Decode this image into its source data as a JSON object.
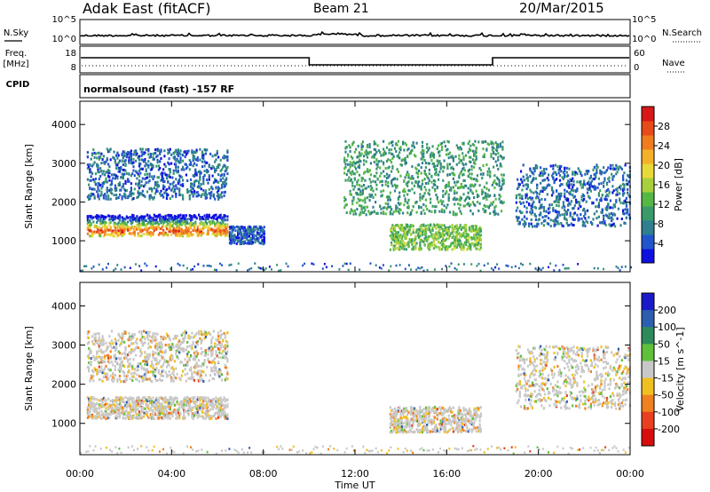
{
  "header": {
    "station": "Adak East (fitACF)",
    "beam": "Beam 21",
    "date": "20/Mar/2015"
  },
  "strips": {
    "nsky_label": "N.Sky",
    "nsearch_label": "N.Search",
    "top_tick_hi": "10^5",
    "top_tick_lo": "10^0",
    "freq_label_1": "Freq.",
    "freq_label_2": "[MHz]",
    "freq_ticks": [
      "18",
      "8"
    ],
    "nave_label": "Nave",
    "nave_ticks": [
      "60",
      "0"
    ],
    "cpid_label": "CPID",
    "cpid_text": "normalsound (fast) -157 RF"
  },
  "chart_data": [
    {
      "type": "heatmap",
      "name": "power",
      "ylabel": "Slant Range [km]",
      "xlabel": "",
      "x_ticks": [
        "00:00",
        "04:00",
        "08:00",
        "12:00",
        "16:00",
        "20:00",
        "00:00"
      ],
      "x_hours": [
        0,
        4,
        8,
        12,
        16,
        20,
        24
      ],
      "xlim": [
        0,
        24
      ],
      "ylim": [
        200,
        4600
      ],
      "y_ticks": [
        1000,
        2000,
        3000,
        4000
      ],
      "colorbar": {
        "label": "Power [dB]",
        "ticks": [
          "4",
          "8",
          "12",
          "16",
          "20",
          "24",
          "28"
        ],
        "tick_values": [
          4,
          8,
          12,
          16,
          20,
          24,
          28
        ],
        "range": [
          0,
          32
        ],
        "colors": [
          "#1010e0",
          "#2255cc",
          "#2f7f8f",
          "#3a9a6a",
          "#55b845",
          "#a8cf3c",
          "#e8d93a",
          "#f5b02a",
          "#f07c1f",
          "#e84a1a",
          "#d81818"
        ]
      },
      "echo_regions": [
        {
          "hours": [
            0.3,
            6.4
          ],
          "range_km": [
            1150,
            1700
          ],
          "power_db": 22
        },
        {
          "hours": [
            0.3,
            6.4
          ],
          "range_km": [
            2100,
            3400
          ],
          "power_db": 6
        },
        {
          "hours": [
            6.5,
            8.0
          ],
          "range_km": [
            950,
            1400
          ],
          "power_db": 5
        },
        {
          "hours": [
            13.5,
            17.5
          ],
          "range_km": [
            800,
            1450
          ],
          "power_db": 14
        },
        {
          "hours": [
            19.0,
            24.0
          ],
          "range_km": [
            1400,
            3000
          ],
          "power_db": 6
        },
        {
          "hours": [
            11.5,
            18.5
          ],
          "range_km": [
            1700,
            3600
          ],
          "power_db": 10
        }
      ]
    },
    {
      "type": "heatmap",
      "name": "velocity",
      "ylabel": "Slant Range [km]",
      "xlabel": "Time UT",
      "x_ticks": [
        "00:00",
        "04:00",
        "08:00",
        "12:00",
        "16:00",
        "20:00",
        "00:00"
      ],
      "x_hours": [
        0,
        4,
        8,
        12,
        16,
        20,
        24
      ],
      "xlim": [
        0,
        24
      ],
      "ylim": [
        200,
        4600
      ],
      "y_ticks": [
        1000,
        2000,
        3000,
        4000
      ],
      "colorbar": {
        "label": "Velocity [m s^-1]",
        "ticks": [
          "200",
          "100",
          "50",
          "15",
          "-15",
          "-50",
          "-100",
          "-200"
        ],
        "tick_values": [
          200,
          100,
          50,
          15,
          -15,
          -50,
          -100,
          -200
        ],
        "colors": [
          "#1a1ac8",
          "#2d5fb0",
          "#2e8a5a",
          "#5fc03a",
          "#c8c8c8",
          "#f0c020",
          "#f08020",
          "#e84020",
          "#d80e0e"
        ]
      },
      "echo_regions": [
        {
          "hours": [
            0.3,
            6.4
          ],
          "range_km": [
            1150,
            1700
          ],
          "velocity": 0
        },
        {
          "hours": [
            0.3,
            6.4
          ],
          "range_km": [
            2100,
            3400
          ],
          "velocity": -30
        },
        {
          "hours": [
            13.5,
            17.5
          ],
          "range_km": [
            800,
            1450
          ],
          "velocity": 0
        },
        {
          "hours": [
            19.0,
            24.0
          ],
          "range_km": [
            1400,
            3000
          ],
          "velocity": 0
        }
      ]
    }
  ]
}
